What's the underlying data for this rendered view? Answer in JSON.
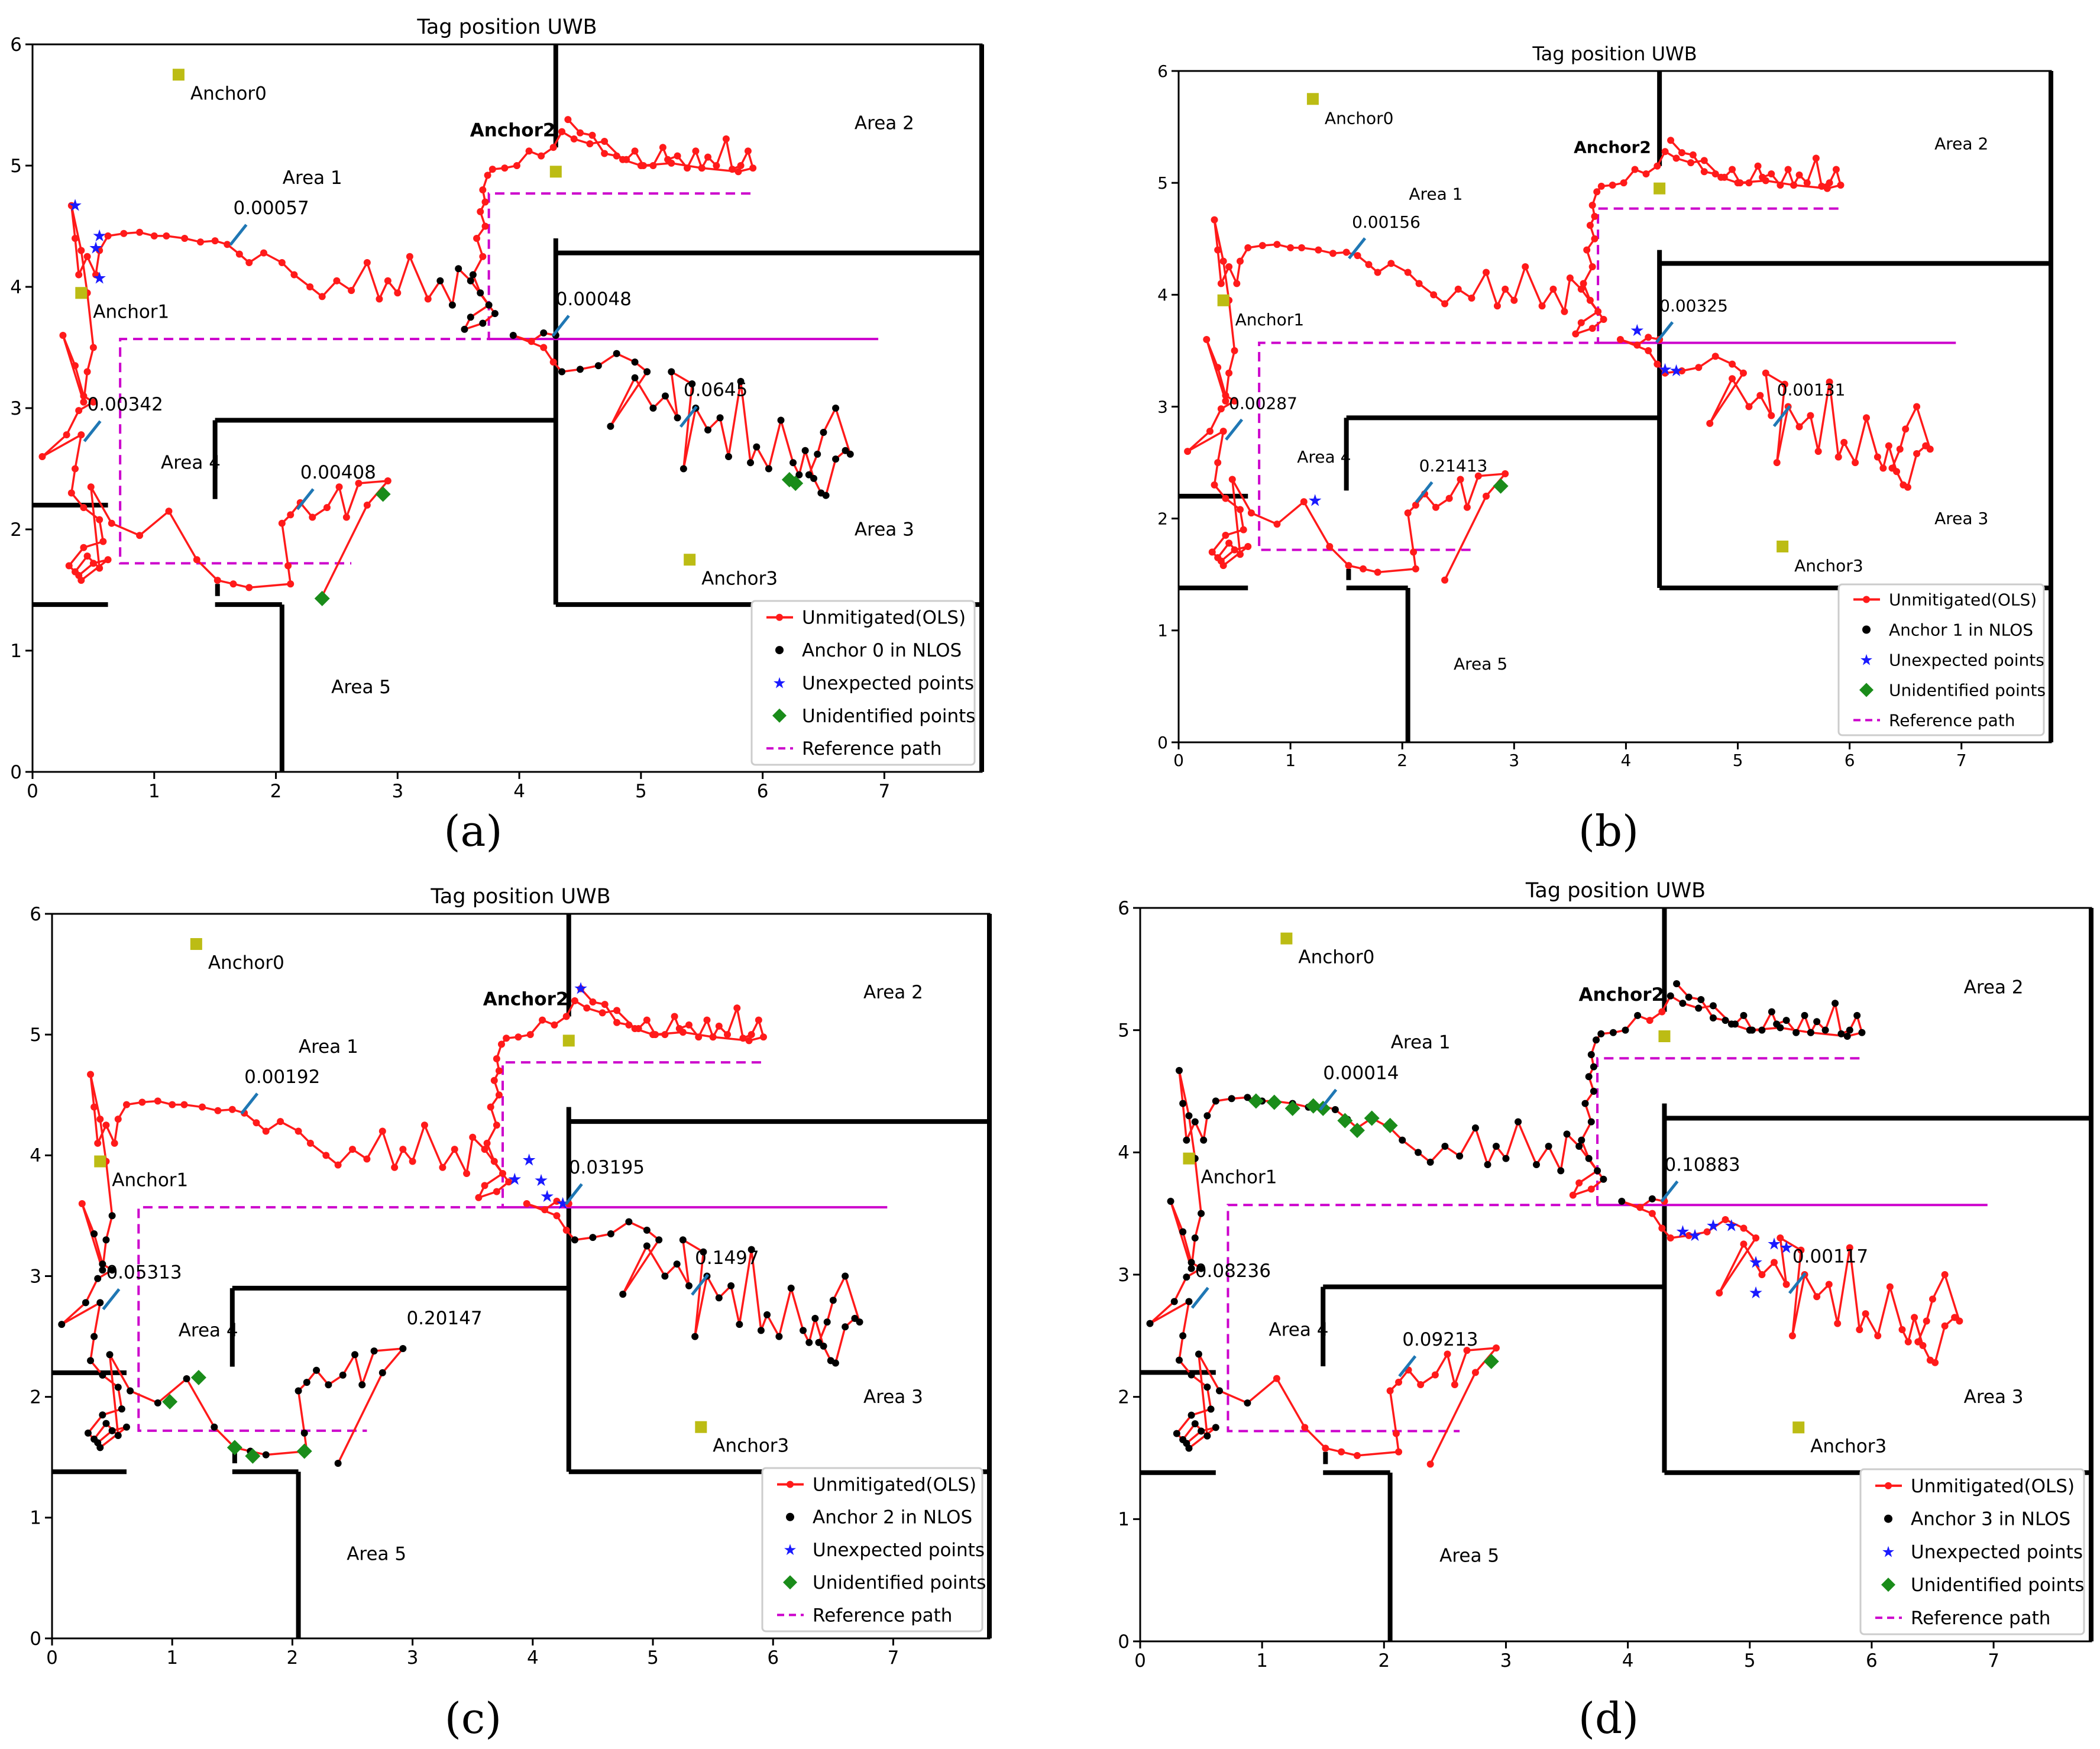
{
  "figure": {
    "panel_labels": [
      "(a)",
      "(b)",
      "(c)",
      "(d)"
    ]
  },
  "chart_data": [
    {
      "type": "line",
      "panel": "(a)",
      "title": "Tag position UWB",
      "xlim": [
        0,
        7.8
      ],
      "ylim": [
        0,
        6
      ],
      "xticks": [
        0,
        1,
        2,
        3,
        4,
        5,
        6,
        7
      ],
      "yticks": [
        0,
        1,
        2,
        3,
        4,
        5,
        6
      ],
      "anchors": [
        {
          "label": "Anchor0",
          "x": 1.2,
          "y": 5.75
        },
        {
          "label": "Anchor1",
          "x": 0.4,
          "y": 3.95
        },
        {
          "label": "Anchor2",
          "x": 4.3,
          "y": 4.95
        },
        {
          "label": "Anchor3",
          "x": 5.4,
          "y": 1.75
        }
      ],
      "areas": [
        {
          "label": "Area 1",
          "x": 2.3,
          "y": 4.85
        },
        {
          "label": "Area 2",
          "x": 7.0,
          "y": 5.3
        },
        {
          "label": "Area 3",
          "x": 7.0,
          "y": 1.95
        },
        {
          "label": "Area 4",
          "x": 1.3,
          "y": 2.5
        },
        {
          "label": "Area 5",
          "x": 2.7,
          "y": 0.65
        }
      ],
      "error_annotations": [
        {
          "text": "0.00057",
          "x": 1.65,
          "y": 4.6
        },
        {
          "text": "0.00048",
          "x": 4.3,
          "y": 3.85
        },
        {
          "text": "0.00342",
          "x": 0.45,
          "y": 2.98
        },
        {
          "text": "0.0645",
          "x": 5.35,
          "y": 3.1
        },
        {
          "text": "0.00408",
          "x": 2.2,
          "y": 2.42
        }
      ],
      "nlos_anchor_index": 0,
      "legend": [
        "Unmitigated(OLS)",
        "Anchor 0 in NLOS",
        "Unexpected points",
        "Unidentified points",
        "Reference path"
      ],
      "unexpected_points": [
        [
          0.35,
          4.67
        ],
        [
          0.55,
          4.07
        ],
        [
          0.52,
          4.32
        ],
        [
          0.55,
          4.42
        ]
      ],
      "unidentified_points": [
        [
          2.88,
          2.29
        ],
        [
          2.38,
          1.43
        ],
        [
          6.22,
          2.41
        ],
        [
          6.27,
          2.38
        ]
      ]
    },
    {
      "type": "line",
      "panel": "(b)",
      "title": "Tag position UWB",
      "xlim": [
        0,
        7.8
      ],
      "ylim": [
        0,
        6
      ],
      "xticks": [
        0,
        1,
        2,
        3,
        4,
        5,
        6,
        7
      ],
      "yticks": [
        0,
        1,
        2,
        3,
        4,
        5,
        6
      ],
      "anchors": [
        {
          "label": "Anchor0",
          "x": 1.2,
          "y": 5.75
        },
        {
          "label": "Anchor1",
          "x": 0.4,
          "y": 3.95
        },
        {
          "label": "Anchor2",
          "x": 4.3,
          "y": 4.95
        },
        {
          "label": "Anchor3",
          "x": 5.4,
          "y": 1.75
        }
      ],
      "areas": [
        {
          "label": "Area 1",
          "x": 2.3,
          "y": 4.85
        },
        {
          "label": "Area 2",
          "x": 7.0,
          "y": 5.3
        },
        {
          "label": "Area 3",
          "x": 7.0,
          "y": 1.95
        },
        {
          "label": "Area 4",
          "x": 1.3,
          "y": 2.5
        },
        {
          "label": "Area 5",
          "x": 2.7,
          "y": 0.65
        }
      ],
      "error_annotations": [
        {
          "text": "0.00156",
          "x": 1.55,
          "y": 4.6
        },
        {
          "text": "0.00325",
          "x": 4.3,
          "y": 3.85
        },
        {
          "text": "0.00287",
          "x": 0.45,
          "y": 2.98
        },
        {
          "text": "0.00131",
          "x": 5.35,
          "y": 3.1
        },
        {
          "text": "0.21413",
          "x": 2.15,
          "y": 2.42
        }
      ],
      "nlos_anchor_index": 1,
      "legend": [
        "Unmitigated(OLS)",
        "Anchor 1 in NLOS",
        "Unexpected points",
        "Unidentified points",
        "Reference path"
      ],
      "unexpected_points": [
        [
          1.22,
          2.16
        ],
        [
          4.1,
          3.68
        ],
        [
          4.35,
          3.33
        ],
        [
          4.45,
          3.32
        ]
      ],
      "unidentified_points": [
        [
          2.88,
          2.29
        ]
      ]
    },
    {
      "type": "line",
      "panel": "(c)",
      "title": "Tag position UWB",
      "xlim": [
        0,
        7.8
      ],
      "ylim": [
        0,
        6
      ],
      "xticks": [
        0,
        1,
        2,
        3,
        4,
        5,
        6,
        7
      ],
      "yticks": [
        0,
        1,
        2,
        3,
        4,
        5,
        6
      ],
      "anchors": [
        {
          "label": "Anchor0",
          "x": 1.2,
          "y": 5.75
        },
        {
          "label": "Anchor1",
          "x": 0.4,
          "y": 3.95
        },
        {
          "label": "Anchor2",
          "x": 4.3,
          "y": 4.95
        },
        {
          "label": "Anchor3",
          "x": 5.4,
          "y": 1.75
        }
      ],
      "areas": [
        {
          "label": "Area 1",
          "x": 2.3,
          "y": 4.85
        },
        {
          "label": "Area 2",
          "x": 7.0,
          "y": 5.3
        },
        {
          "label": "Area 3",
          "x": 7.0,
          "y": 1.95
        },
        {
          "label": "Area 4",
          "x": 1.3,
          "y": 2.5
        },
        {
          "label": "Area 5",
          "x": 2.7,
          "y": 0.65
        }
      ],
      "error_annotations": [
        {
          "text": "0.00192",
          "x": 1.6,
          "y": 4.6
        },
        {
          "text": "0.03195",
          "x": 4.3,
          "y": 3.85
        },
        {
          "text": "0.05313",
          "x": 0.45,
          "y": 2.98
        },
        {
          "text": "0.1497",
          "x": 5.35,
          "y": 3.1
        },
        {
          "text": "0.20147",
          "x": 2.95,
          "y": 2.6
        }
      ],
      "nlos_anchor_index": 2,
      "legend": [
        "Unmitigated(OLS)",
        "Anchor 2 in NLOS",
        "Unexpected points",
        "Unidentified points",
        "Reference path"
      ],
      "unexpected_points": [
        [
          4.4,
          5.38
        ],
        [
          3.97,
          3.96
        ],
        [
          4.07,
          3.79
        ],
        [
          4.12,
          3.66
        ],
        [
          4.25,
          3.6
        ],
        [
          3.85,
          3.8
        ]
      ],
      "unidentified_points": [
        [
          0.98,
          1.96
        ],
        [
          1.22,
          2.16
        ],
        [
          1.52,
          1.58
        ],
        [
          1.67,
          1.51
        ],
        [
          2.1,
          1.55
        ]
      ]
    },
    {
      "type": "line",
      "panel": "(d)",
      "title": "Tag position UWB",
      "xlim": [
        0,
        7.8
      ],
      "ylim": [
        0,
        6
      ],
      "xticks": [
        0,
        1,
        2,
        3,
        4,
        5,
        6,
        7
      ],
      "yticks": [
        0,
        1,
        2,
        3,
        4,
        5,
        6
      ],
      "anchors": [
        {
          "label": "Anchor0",
          "x": 1.2,
          "y": 5.75
        },
        {
          "label": "Anchor1",
          "x": 0.4,
          "y": 3.95
        },
        {
          "label": "Anchor2",
          "x": 4.3,
          "y": 4.95
        },
        {
          "label": "Anchor3",
          "x": 5.4,
          "y": 1.75
        }
      ],
      "areas": [
        {
          "label": "Area 1",
          "x": 2.3,
          "y": 4.85
        },
        {
          "label": "Area 2",
          "x": 7.0,
          "y": 5.3
        },
        {
          "label": "Area 3",
          "x": 7.0,
          "y": 1.95
        },
        {
          "label": "Area 4",
          "x": 1.3,
          "y": 2.5
        },
        {
          "label": "Area 5",
          "x": 2.7,
          "y": 0.65
        }
      ],
      "error_annotations": [
        {
          "text": "0.00014",
          "x": 1.5,
          "y": 4.6
        },
        {
          "text": "0.10883",
          "x": 4.3,
          "y": 3.85
        },
        {
          "text": "0.08236",
          "x": 0.45,
          "y": 2.98
        },
        {
          "text": "0.00117",
          "x": 5.35,
          "y": 3.1
        },
        {
          "text": "0.09213",
          "x": 2.15,
          "y": 2.42
        }
      ],
      "nlos_anchor_index": 3,
      "legend": [
        "Unmitigated(OLS)",
        "Anchor 3 in NLOS",
        "Unexpected points",
        "Unidentified points",
        "Reference path"
      ],
      "unexpected_points": [
        [
          4.45,
          3.35
        ],
        [
          4.55,
          3.32
        ],
        [
          4.7,
          3.4
        ],
        [
          4.85,
          3.4
        ],
        [
          5.05,
          3.1
        ],
        [
          5.2,
          3.25
        ],
        [
          5.3,
          3.22
        ],
        [
          5.05,
          2.85
        ]
      ],
      "unidentified_points": [
        [
          0.95,
          4.42
        ],
        [
          1.1,
          4.41
        ],
        [
          1.25,
          4.36
        ],
        [
          1.42,
          4.38
        ],
        [
          1.5,
          4.36
        ],
        [
          1.68,
          4.26
        ],
        [
          1.78,
          4.18
        ],
        [
          1.9,
          4.28
        ],
        [
          2.05,
          4.22
        ],
        [
          2.88,
          2.29
        ]
      ]
    }
  ],
  "track": {
    "points": [
      [
        4.4,
        5.38
      ],
      [
        4.5,
        5.27
      ],
      [
        4.6,
        5.25
      ],
      [
        4.7,
        5.1
      ],
      [
        4.8,
        5.08
      ],
      [
        4.88,
        5.05
      ],
      [
        4.95,
        5.12
      ],
      [
        5.02,
        5.0
      ],
      [
        5.1,
        5.0
      ],
      [
        5.18,
        5.15
      ],
      [
        5.22,
        5.05
      ],
      [
        5.3,
        5.08
      ],
      [
        5.38,
        4.98
      ],
      [
        5.45,
        5.12
      ],
      [
        5.5,
        4.98
      ],
      [
        5.55,
        5.07
      ],
      [
        5.62,
        5.0
      ],
      [
        5.7,
        5.22
      ],
      [
        5.75,
        4.97
      ],
      [
        5.82,
        5.0
      ],
      [
        5.88,
        5.12
      ],
      [
        5.92,
        4.98
      ],
      [
        5.8,
        4.95
      ],
      [
        5.5,
        4.98
      ],
      [
        5.25,
        5.02
      ],
      [
        5.0,
        5.0
      ],
      [
        4.85,
        5.05
      ],
      [
        4.7,
        5.2
      ],
      [
        4.58,
        5.18
      ],
      [
        4.45,
        5.22
      ],
      [
        4.35,
        5.28
      ],
      [
        4.28,
        5.15
      ],
      [
        4.18,
        5.08
      ],
      [
        4.08,
        5.12
      ],
      [
        3.98,
        5.0
      ],
      [
        3.88,
        4.98
      ],
      [
        3.78,
        4.97
      ],
      [
        3.74,
        4.92
      ],
      [
        3.7,
        4.8
      ],
      [
        3.72,
        4.7
      ],
      [
        3.68,
        4.62
      ],
      [
        3.72,
        4.5
      ],
      [
        3.65,
        4.4
      ],
      [
        3.7,
        4.25
      ],
      [
        3.62,
        4.1
      ],
      [
        3.68,
        3.95
      ],
      [
        3.75,
        3.85
      ],
      [
        3.6,
        3.75
      ],
      [
        3.55,
        3.65
      ],
      [
        3.7,
        3.7
      ],
      [
        3.8,
        3.78
      ],
      [
        3.6,
        4.05
      ],
      [
        3.5,
        4.15
      ],
      [
        3.45,
        3.85
      ],
      [
        3.35,
        4.05
      ],
      [
        3.25,
        3.9
      ],
      [
        3.1,
        4.25
      ],
      [
        3.0,
        3.95
      ],
      [
        2.92,
        4.05
      ],
      [
        2.85,
        3.9
      ],
      [
        2.75,
        4.2
      ],
      [
        2.62,
        3.97
      ],
      [
        2.5,
        4.05
      ],
      [
        2.38,
        3.92
      ],
      [
        2.28,
        4.0
      ],
      [
        2.15,
        4.1
      ],
      [
        2.05,
        4.2
      ],
      [
        1.9,
        4.28
      ],
      [
        1.78,
        4.2
      ],
      [
        1.7,
        4.27
      ],
      [
        1.6,
        4.35
      ],
      [
        1.5,
        4.38
      ],
      [
        1.38,
        4.37
      ],
      [
        1.25,
        4.4
      ],
      [
        1.1,
        4.42
      ],
      [
        1.0,
        4.42
      ],
      [
        0.88,
        4.45
      ],
      [
        0.75,
        4.44
      ],
      [
        0.62,
        4.42
      ],
      [
        0.55,
        4.3
      ],
      [
        0.52,
        4.1
      ],
      [
        0.45,
        4.25
      ],
      [
        0.38,
        4.1
      ],
      [
        0.35,
        4.4
      ],
      [
        0.32,
        4.67
      ],
      [
        0.4,
        4.3
      ],
      [
        0.45,
        3.95
      ],
      [
        0.5,
        3.5
      ],
      [
        0.45,
        3.3
      ],
      [
        0.42,
        3.05
      ],
      [
        0.25,
        3.6
      ],
      [
        0.35,
        3.35
      ],
      [
        0.42,
        3.1
      ],
      [
        0.5,
        3.05
      ],
      [
        0.38,
        2.98
      ],
      [
        0.28,
        2.78
      ],
      [
        0.08,
        2.6
      ],
      [
        0.4,
        2.78
      ],
      [
        0.35,
        2.5
      ],
      [
        0.32,
        2.3
      ],
      [
        0.42,
        2.18
      ],
      [
        0.55,
        2.08
      ],
      [
        0.58,
        1.9
      ],
      [
        0.42,
        1.85
      ],
      [
        0.3,
        1.7
      ],
      [
        0.38,
        1.62
      ],
      [
        0.5,
        1.72
      ],
      [
        0.62,
        1.75
      ],
      [
        0.4,
        1.58
      ],
      [
        0.35,
        1.65
      ],
      [
        0.45,
        1.78
      ],
      [
        0.55,
        1.68
      ],
      [
        0.48,
        2.35
      ],
      [
        0.65,
        2.05
      ],
      [
        0.88,
        1.95
      ],
      [
        1.12,
        2.15
      ],
      [
        1.35,
        1.75
      ],
      [
        1.52,
        1.58
      ],
      [
        1.65,
        1.55
      ],
      [
        1.78,
        1.52
      ],
      [
        2.12,
        1.55
      ],
      [
        2.1,
        1.7
      ],
      [
        2.05,
        2.05
      ],
      [
        2.12,
        2.12
      ],
      [
        2.2,
        2.22
      ],
      [
        2.3,
        2.1
      ],
      [
        2.42,
        2.18
      ],
      [
        2.52,
        2.35
      ],
      [
        2.58,
        2.1
      ],
      [
        2.68,
        2.38
      ],
      [
        2.92,
        2.4
      ],
      [
        2.75,
        2.2
      ],
      [
        2.38,
        1.45
      ]
    ],
    "lower_segment": [
      [
        4.3,
        3.6
      ],
      [
        4.2,
        3.62
      ],
      [
        4.1,
        3.55
      ],
      [
        3.95,
        3.6
      ],
      [
        4.2,
        3.5
      ],
      [
        4.28,
        3.38
      ],
      [
        4.35,
        3.3
      ],
      [
        4.5,
        3.32
      ],
      [
        4.65,
        3.35
      ],
      [
        4.8,
        3.45
      ],
      [
        4.95,
        3.38
      ],
      [
        5.05,
        3.3
      ],
      [
        4.75,
        2.85
      ],
      [
        4.95,
        3.25
      ],
      [
        5.1,
        3.0
      ],
      [
        5.2,
        3.1
      ],
      [
        5.3,
        2.92
      ],
      [
        5.25,
        3.3
      ],
      [
        5.42,
        3.2
      ],
      [
        5.35,
        2.5
      ],
      [
        5.45,
        3.0
      ],
      [
        5.55,
        2.82
      ],
      [
        5.65,
        2.92
      ],
      [
        5.72,
        2.6
      ],
      [
        5.82,
        3.22
      ],
      [
        5.9,
        2.55
      ],
      [
        5.95,
        2.68
      ],
      [
        6.05,
        2.5
      ],
      [
        6.15,
        2.9
      ],
      [
        6.25,
        2.55
      ],
      [
        6.3,
        2.45
      ],
      [
        6.35,
        2.65
      ],
      [
        6.42,
        2.42
      ],
      [
        6.48,
        2.3
      ],
      [
        6.52,
        2.28
      ],
      [
        6.6,
        2.58
      ],
      [
        6.68,
        2.65
      ],
      [
        6.72,
        2.62
      ],
      [
        6.6,
        3.0
      ],
      [
        6.5,
        2.8
      ],
      [
        6.45,
        2.62
      ],
      [
        6.38,
        2.45
      ]
    ],
    "reference_path": [
      [
        5.9,
        4.77
      ],
      [
        3.75,
        4.77
      ],
      [
        3.75,
        3.57
      ],
      [
        0.72,
        3.57
      ],
      [
        0.72,
        1.72
      ],
      [
        2.62,
        1.72
      ]
    ],
    "reference_right": [
      [
        3.75,
        3.57
      ],
      [
        6.95,
        3.57
      ]
    ]
  },
  "walls": [
    [
      [
        0,
        2.2
      ],
      [
        0.62,
        2.2
      ]
    ],
    [
      [
        0,
        1.38
      ],
      [
        0.62,
        1.38
      ]
    ],
    [
      [
        1.5,
        1.38
      ],
      [
        2.05,
        1.38
      ]
    ],
    [
      [
        2.05,
        1.38
      ],
      [
        2.05,
        0
      ]
    ],
    [
      [
        1.52,
        1.45
      ],
      [
        1.52,
        1.55
      ]
    ],
    [
      [
        1.5,
        2.25
      ],
      [
        1.5,
        2.9
      ]
    ],
    [
      [
        1.5,
        2.9
      ],
      [
        4.3,
        2.9
      ]
    ],
    [
      [
        4.3,
        1.38
      ],
      [
        4.3,
        4.4
      ]
    ],
    [
      [
        4.3,
        5.15
      ],
      [
        4.3,
        6.0
      ]
    ],
    [
      [
        4.3,
        4.28
      ],
      [
        7.8,
        4.28
      ]
    ],
    [
      [
        4.3,
        1.38
      ],
      [
        7.8,
        1.38
      ]
    ],
    [
      [
        7.8,
        0
      ],
      [
        7.8,
        6.0
      ]
    ]
  ]
}
